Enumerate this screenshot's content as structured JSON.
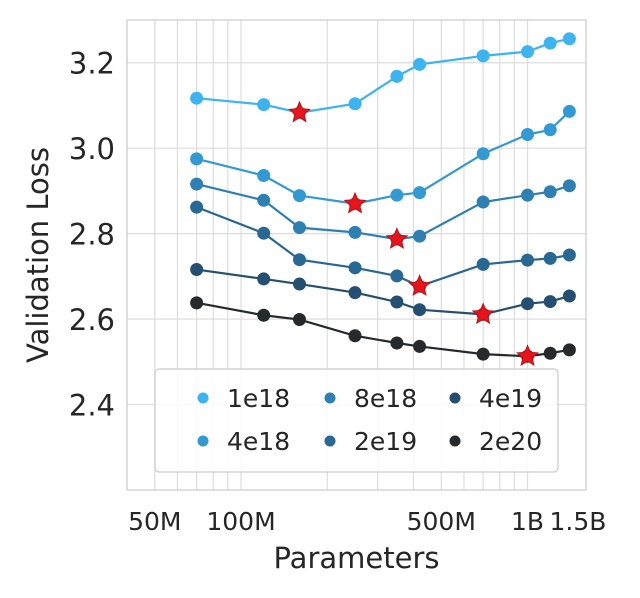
{
  "chart_data": {
    "type": "line",
    "title": "",
    "xlabel": "Parameters",
    "ylabel": "Validation Loss",
    "xscale": "log",
    "xlim": [
      40000000,
      1600000000
    ],
    "ylim": [
      2.2,
      3.3
    ],
    "x_ticks": [
      {
        "value": 50000000,
        "label": "50M"
      },
      {
        "value": 100000000,
        "label": "100M"
      },
      {
        "value": 500000000,
        "label": "500M"
      },
      {
        "value": 1000000000,
        "label": "1B"
      },
      {
        "value": 1500000000,
        "label": "1.5B"
      }
    ],
    "y_ticks": [
      {
        "value": 2.4,
        "label": "2.4"
      },
      {
        "value": 2.6,
        "label": "2.6"
      },
      {
        "value": 2.8,
        "label": "2.8"
      },
      {
        "value": 3.0,
        "label": "3.0"
      },
      {
        "value": 3.2,
        "label": "3.2"
      }
    ],
    "grid": true,
    "legend_position": "lower center, 3 columns",
    "optimum_marker": "red star",
    "series": [
      {
        "name": "1e18",
        "color": "#3db3f0",
        "x": [
          70000000,
          120000000,
          160000000,
          250000000,
          350000000,
          420000000,
          700000000,
          1000000000,
          1200000000,
          1400000000
        ],
        "y": [
          3.117,
          3.102,
          3.083,
          3.104,
          3.168,
          3.196,
          3.216,
          3.226,
          3.246,
          3.256
        ],
        "optimum_index": 2
      },
      {
        "name": "4e18",
        "color": "#3399d2",
        "x": [
          70000000,
          120000000,
          160000000,
          250000000,
          350000000,
          420000000,
          700000000,
          1000000000,
          1200000000,
          1400000000
        ],
        "y": [
          2.975,
          2.936,
          2.889,
          2.87,
          2.89,
          2.896,
          2.987,
          3.032,
          3.043,
          3.086
        ],
        "optimum_index": 3
      },
      {
        "name": "8e18",
        "color": "#2e80b3",
        "x": [
          70000000,
          120000000,
          160000000,
          250000000,
          350000000,
          420000000,
          700000000,
          1000000000,
          1200000000,
          1400000000
        ],
        "y": [
          2.916,
          2.878,
          2.814,
          2.803,
          2.787,
          2.794,
          2.874,
          2.89,
          2.898,
          2.912
        ],
        "optimum_index": 4
      },
      {
        "name": "2e19",
        "color": "#296893",
        "x": [
          70000000,
          120000000,
          160000000,
          250000000,
          350000000,
          420000000,
          700000000,
          1000000000,
          1200000000,
          1400000000
        ],
        "y": [
          2.862,
          2.801,
          2.739,
          2.72,
          2.701,
          2.677,
          2.728,
          2.738,
          2.742,
          2.75
        ],
        "optimum_index": 5
      },
      {
        "name": "4e19",
        "color": "#254f70",
        "x": [
          70000000,
          120000000,
          160000000,
          250000000,
          350000000,
          420000000,
          700000000,
          1000000000,
          1200000000,
          1400000000
        ],
        "y": [
          2.716,
          2.694,
          2.682,
          2.662,
          2.64,
          2.622,
          2.611,
          2.636,
          2.641,
          2.654
        ],
        "optimum_index": 6
      },
      {
        "name": "2e20",
        "color": "#262a2d",
        "x": [
          70000000,
          120000000,
          160000000,
          250000000,
          350000000,
          420000000,
          700000000,
          1000000000,
          1200000000,
          1400000000
        ],
        "y": [
          2.638,
          2.609,
          2.599,
          2.561,
          2.544,
          2.536,
          2.518,
          2.513,
          2.52,
          2.528
        ],
        "optimum_index": 7
      }
    ]
  }
}
